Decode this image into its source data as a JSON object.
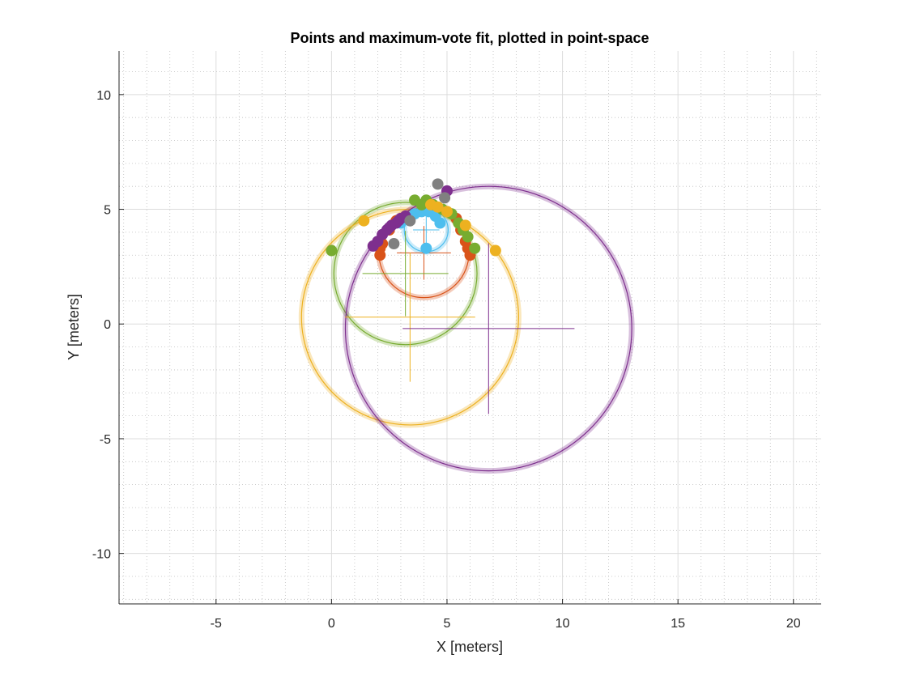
{
  "chart_data": {
    "type": "scatter",
    "title": "Points and maximum-vote fit, plotted in point-space",
    "xlabel": "X [meters]",
    "ylabel": "Y [meters]",
    "xlim": [
      -9.2,
      21.2
    ],
    "ylim": [
      -12.2,
      11.9
    ],
    "x_ticks": [
      -5,
      0,
      5,
      10,
      15,
      20
    ],
    "y_ticks": [
      -10,
      -5,
      0,
      5,
      10
    ],
    "x_minor_step": 1,
    "y_minor_step": 1,
    "grid": true,
    "minor_grid": true,
    "legend": "none",
    "series": [
      {
        "color": "#4DBEEE",
        "fit_circle": {
          "center": [
            4.1,
            4.1
          ],
          "radius": 0.95
        },
        "points": [
          [
            3.0,
            4.4
          ],
          [
            3.3,
            4.6
          ],
          [
            3.6,
            4.8
          ],
          [
            3.9,
            4.9
          ],
          [
            4.2,
            4.9
          ],
          [
            4.5,
            4.7
          ],
          [
            4.7,
            4.4
          ],
          [
            4.1,
            3.3
          ]
        ]
      },
      {
        "color": "#D95319",
        "fit_circle": {
          "center": [
            4.0,
            3.1
          ],
          "radius": 1.95
        },
        "points": [
          [
            2.1,
            3.0
          ],
          [
            2.1,
            3.3
          ],
          [
            2.2,
            3.5
          ],
          [
            2.5,
            4.1
          ],
          [
            2.8,
            4.5
          ],
          [
            5.4,
            4.6
          ],
          [
            5.8,
            3.6
          ],
          [
            5.9,
            3.3
          ],
          [
            6.0,
            3.0
          ],
          [
            5.6,
            4.1
          ]
        ]
      },
      {
        "color": "#77AC30",
        "fit_circle": {
          "center": [
            3.2,
            2.2
          ],
          "radius": 3.1
        },
        "points": [
          [
            0.0,
            3.2
          ],
          [
            3.6,
            5.4
          ],
          [
            4.1,
            5.4
          ],
          [
            4.4,
            5.2
          ],
          [
            4.8,
            5.0
          ],
          [
            5.2,
            4.8
          ],
          [
            5.5,
            4.4
          ],
          [
            5.7,
            4.1
          ],
          [
            5.9,
            3.8
          ],
          [
            6.2,
            3.3
          ],
          [
            3.9,
            5.2
          ],
          [
            5.0,
            4.9
          ]
        ]
      },
      {
        "color": "#EDB120",
        "fit_circle": {
          "center": [
            3.4,
            0.3
          ],
          "radius": 4.7
        },
        "points": [
          [
            1.4,
            4.5
          ],
          [
            7.1,
            3.2
          ],
          [
            5.8,
            4.3
          ],
          [
            5.0,
            4.9
          ],
          [
            4.6,
            5.1
          ],
          [
            4.3,
            5.2
          ]
        ]
      },
      {
        "color": "#7E2F8E",
        "fit_circle": {
          "center": [
            6.8,
            -0.2
          ],
          "radius": 6.2
        },
        "points": [
          [
            1.8,
            3.4
          ],
          [
            2.0,
            3.6
          ],
          [
            2.2,
            3.9
          ],
          [
            2.4,
            4.1
          ],
          [
            2.5,
            4.2
          ],
          [
            2.6,
            4.3
          ],
          [
            2.8,
            4.4
          ],
          [
            2.9,
            4.5
          ],
          [
            3.0,
            4.6
          ],
          [
            3.2,
            4.7
          ],
          [
            5.0,
            5.8
          ]
        ]
      },
      {
        "color": "#808080",
        "points": [
          [
            4.6,
            6.1
          ],
          [
            4.9,
            5.5
          ],
          [
            3.4,
            4.5
          ],
          [
            2.7,
            3.5
          ]
        ]
      }
    ]
  }
}
